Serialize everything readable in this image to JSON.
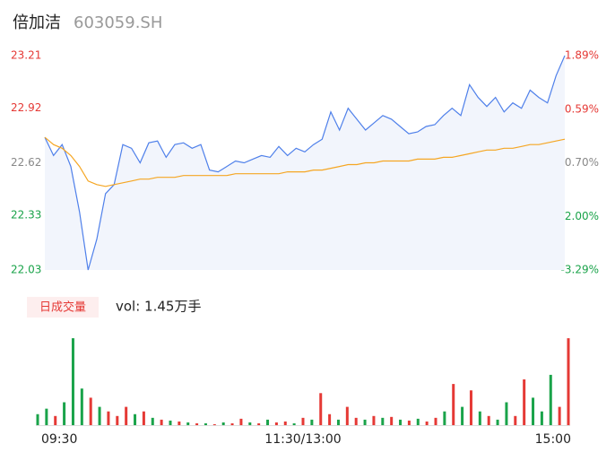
{
  "chart_data": [
    {
      "type": "line",
      "title": "倍加洁",
      "subtitle": "603059.SH",
      "series": [
        {
          "color": "#4f80ea",
          "fill": "#f2f5fc",
          "values": [
            22.76,
            22.66,
            22.72,
            22.6,
            22.35,
            22.03,
            22.2,
            22.45,
            22.5,
            22.72,
            22.7,
            22.62,
            22.73,
            22.74,
            22.65,
            22.72,
            22.73,
            22.7,
            22.72,
            22.58,
            22.57,
            22.6,
            22.63,
            22.62,
            22.64,
            22.66,
            22.65,
            22.71,
            22.66,
            22.7,
            22.68,
            22.72,
            22.75,
            22.9,
            22.8,
            22.92,
            22.86,
            22.8,
            22.84,
            22.88,
            22.86,
            22.82,
            22.78,
            22.79,
            22.82,
            22.83,
            22.88,
            22.92,
            22.88,
            23.05,
            22.98,
            22.93,
            22.98,
            22.9,
            22.95,
            22.92,
            23.02,
            22.98,
            22.95,
            23.1,
            23.21
          ]
        },
        {
          "color": "#f5a623",
          "values": [
            22.76,
            22.72,
            22.7,
            22.66,
            22.6,
            22.52,
            22.5,
            22.49,
            22.5,
            22.51,
            22.52,
            22.53,
            22.53,
            22.54,
            22.54,
            22.54,
            22.55,
            22.55,
            22.55,
            22.55,
            22.55,
            22.55,
            22.56,
            22.56,
            22.56,
            22.56,
            22.56,
            22.56,
            22.57,
            22.57,
            22.57,
            22.58,
            22.58,
            22.59,
            22.6,
            22.61,
            22.61,
            22.62,
            22.62,
            22.63,
            22.63,
            22.63,
            22.63,
            22.64,
            22.64,
            22.64,
            22.65,
            22.65,
            22.66,
            22.67,
            22.68,
            22.69,
            22.69,
            22.7,
            22.7,
            22.71,
            22.72,
            22.72,
            22.73,
            22.74,
            22.75
          ]
        }
      ],
      "ylim": [
        22.03,
        23.21
      ],
      "yticks": [
        23.21,
        22.92,
        22.62,
        22.33,
        22.03
      ],
      "y2lim": [
        -3.29,
        1.89
      ],
      "y2ticks": [
        {
          "value": 1.89,
          "label": "1.89%"
        },
        {
          "value": 0.59,
          "label": "0.59%"
        },
        {
          "value": -0.7,
          "label": "-0.70%"
        },
        {
          "value": -2.0,
          "label": "-2.00%"
        },
        {
          "value": -3.29,
          "label": "-3.29%"
        }
      ],
      "tick_colors": [
        "#e53935",
        "#e53935",
        "#888888",
        "#1aa34a",
        "#1aa34a"
      ]
    },
    {
      "type": "bar",
      "title": "日成交量",
      "annotation": "vol: 1.45万手",
      "categories": [
        "09:30",
        null,
        null,
        null,
        null,
        null,
        null,
        null,
        null,
        null,
        null,
        null,
        null,
        null,
        null,
        null,
        null,
        null,
        null,
        null,
        null,
        null,
        null,
        null,
        null,
        null,
        null,
        null,
        null,
        null,
        "11:30/13:00",
        null,
        null,
        null,
        null,
        null,
        null,
        null,
        null,
        null,
        null,
        null,
        null,
        null,
        null,
        null,
        null,
        null,
        null,
        null,
        null,
        null,
        null,
        null,
        null,
        null,
        null,
        null,
        null,
        null,
        "15:00"
      ],
      "values": [
        120,
        180,
        100,
        250,
        950,
        400,
        300,
        200,
        150,
        100,
        200,
        120,
        150,
        80,
        60,
        50,
        40,
        30,
        20,
        20,
        10,
        30,
        20,
        70,
        30,
        20,
        60,
        30,
        40,
        20,
        80,
        60,
        350,
        120,
        60,
        200,
        80,
        60,
        100,
        80,
        90,
        60,
        50,
        70,
        40,
        80,
        150,
        450,
        200,
        380,
        150,
        100,
        60,
        250,
        100,
        500,
        300,
        150,
        550,
        200,
        950
      ],
      "colors": [
        "#1aa34a",
        "#1aa34a",
        "#e53935",
        "#1aa34a",
        "#1aa34a",
        "#1aa34a",
        "#e53935",
        "#1aa34a",
        "#e53935",
        "#e53935",
        "#e53935",
        "#1aa34a",
        "#e53935",
        "#1aa34a",
        "#e53935",
        "#1aa34a",
        "#e53935",
        "#1aa34a",
        "#e53935",
        "#1aa34a",
        "#e53935",
        "#1aa34a",
        "#e53935",
        "#e53935",
        "#1aa34a",
        "#e53935",
        "#1aa34a",
        "#e53935",
        "#e53935",
        "#1aa34a",
        "#e53935",
        "#1aa34a",
        "#e53935",
        "#e53935",
        "#1aa34a",
        "#e53935",
        "#e53935",
        "#1aa34a",
        "#e53935",
        "#1aa34a",
        "#e53935",
        "#1aa34a",
        "#e53935",
        "#1aa34a",
        "#e53935",
        "#e53935",
        "#1aa34a",
        "#e53935",
        "#1aa34a",
        "#e53935",
        "#1aa34a",
        "#e53935",
        "#1aa34a",
        "#1aa34a",
        "#e53935",
        "#e53935",
        "#1aa34a",
        "#1aa34a",
        "#1aa34a",
        "#e53935",
        "#e53935"
      ],
      "ylim": [
        0,
        1000
      ]
    }
  ]
}
